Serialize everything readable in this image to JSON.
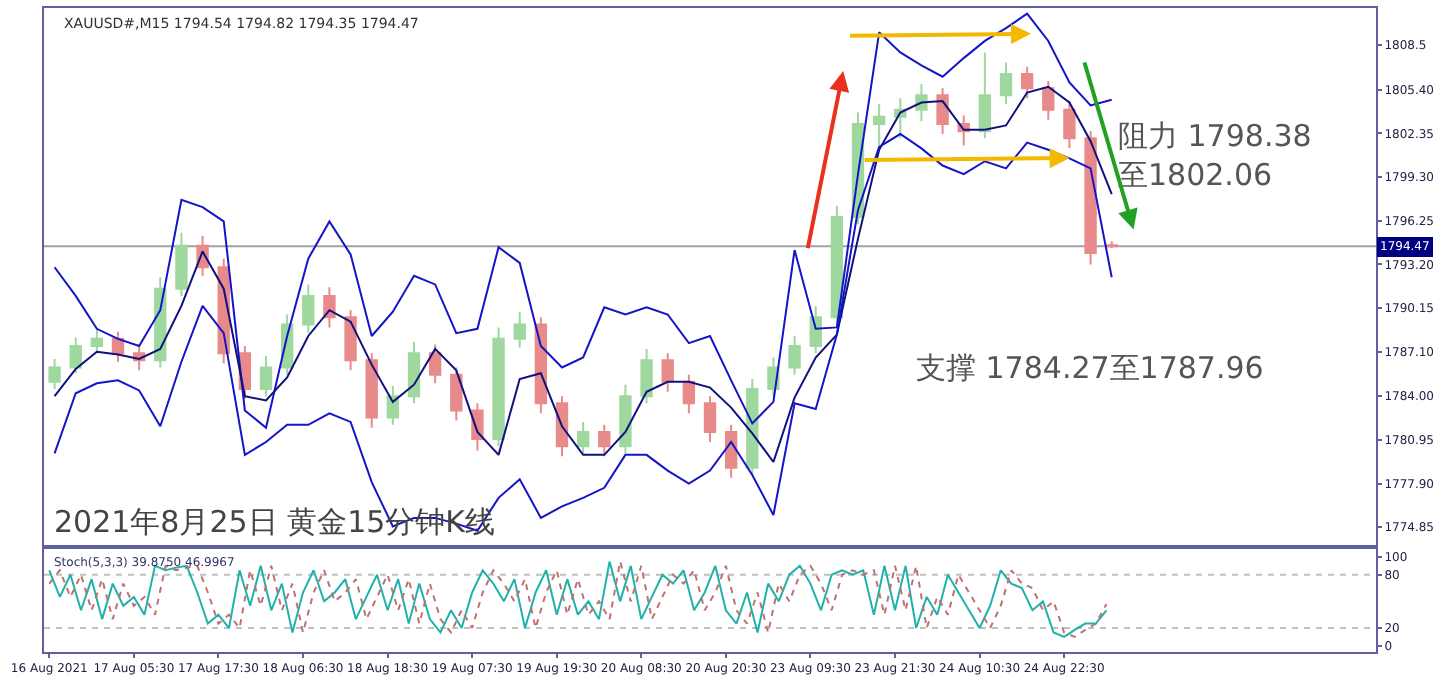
{
  "chart_data": [
    {
      "type": "candlestick",
      "title": "2021年8月25日 黄金15分钟K线",
      "annotations": [
        "XAUUSD#,M15 1794.54 1794.82 1794.35 1794.47",
        "支撑 1784.27至1787.96",
        "阻力 1798.38\n至1802.06"
      ],
      "categories": [
        null,
        null,
        null,
        null,
        null,
        null,
        null,
        null,
        null,
        null,
        null,
        null,
        null,
        null,
        null,
        null,
        null,
        null,
        null,
        null,
        null,
        null,
        null,
        null,
        null,
        null,
        null,
        null,
        null,
        null,
        null,
        null,
        null,
        null,
        null,
        null,
        null,
        null,
        null,
        null,
        null,
        null,
        null,
        null,
        null,
        null,
        null,
        null,
        null,
        null,
        null,
        null,
        null,
        null,
        null,
        null,
        null,
        null,
        null,
        null,
        null,
        null,
        null
      ],
      "ohlc": [
        [
          1785.0,
          1786.6,
          1784.5,
          1786.0
        ],
        [
          1786.0,
          1788.1,
          1785.6,
          1787.5
        ],
        [
          1787.5,
          1788.7,
          1787.0,
          1788.0
        ],
        [
          1788.0,
          1788.5,
          1786.4,
          1787.0
        ],
        [
          1787.0,
          1787.6,
          1785.8,
          1786.5
        ],
        [
          1786.5,
          1792.3,
          1786.0,
          1791.5
        ],
        [
          1791.5,
          1795.4,
          1791.0,
          1794.5
        ],
        [
          1794.5,
          1795.2,
          1792.4,
          1793.0
        ],
        [
          1793.0,
          1793.6,
          1786.3,
          1787.0
        ],
        [
          1787.0,
          1787.5,
          1783.8,
          1784.5
        ],
        [
          1784.5,
          1786.8,
          1784.0,
          1786.0
        ],
        [
          1786.0,
          1789.7,
          1785.5,
          1789.0
        ],
        [
          1789.0,
          1791.8,
          1788.4,
          1791.0
        ],
        [
          1791.0,
          1791.6,
          1788.8,
          1789.5
        ],
        [
          1789.5,
          1790.0,
          1785.8,
          1786.5
        ],
        [
          1786.5,
          1787.0,
          1781.8,
          1782.5
        ],
        [
          1782.5,
          1784.7,
          1782.0,
          1784.0
        ],
        [
          1784.0,
          1787.8,
          1783.5,
          1787.0
        ],
        [
          1787.0,
          1787.6,
          1784.9,
          1785.5
        ],
        [
          1785.5,
          1786.0,
          1782.3,
          1783.0
        ],
        [
          1783.0,
          1783.5,
          1780.2,
          1781.0
        ],
        [
          1781.0,
          1788.8,
          1780.5,
          1788.0
        ],
        [
          1788.0,
          1789.9,
          1787.4,
          1789.0
        ],
        [
          1789.0,
          1789.5,
          1782.8,
          1783.5
        ],
        [
          1783.5,
          1784.0,
          1779.8,
          1780.5
        ],
        [
          1780.5,
          1782.2,
          1780.0,
          1781.5
        ],
        [
          1781.5,
          1782.0,
          1779.8,
          1780.5
        ],
        [
          1780.5,
          1784.8,
          1780.0,
          1784.0
        ],
        [
          1784.0,
          1787.3,
          1783.5,
          1786.5
        ],
        [
          1786.5,
          1787.0,
          1784.3,
          1785.0
        ],
        [
          1785.0,
          1785.5,
          1782.8,
          1783.5
        ],
        [
          1783.5,
          1784.0,
          1780.8,
          1781.5
        ],
        [
          1781.5,
          1782.0,
          1778.3,
          1779.0
        ],
        [
          1779.0,
          1785.2,
          1778.5,
          1784.5
        ],
        [
          1784.5,
          1786.7,
          1784.0,
          1786.0
        ],
        [
          1786.0,
          1788.2,
          1785.5,
          1787.5
        ],
        [
          1787.5,
          1790.3,
          1787.0,
          1789.5
        ],
        [
          1789.5,
          1797.3,
          1789.0,
          1796.5
        ],
        [
          1796.5,
          1803.8,
          1796.0,
          1803.0
        ],
        [
          1803.0,
          1804.4,
          1801.5,
          1803.5
        ],
        [
          1803.5,
          1804.8,
          1802.0,
          1804.0
        ],
        [
          1804.0,
          1805.8,
          1803.2,
          1805.0
        ],
        [
          1805.0,
          1805.5,
          1802.3,
          1803.0
        ],
        [
          1803.0,
          1803.6,
          1801.5,
          1802.5
        ],
        [
          1802.5,
          1808.0,
          1802.0,
          1805.0
        ],
        [
          1805.0,
          1807.3,
          1804.4,
          1806.5
        ],
        [
          1806.5,
          1807.0,
          1804.8,
          1805.5
        ],
        [
          1805.5,
          1806.0,
          1803.3,
          1804.0
        ],
        [
          1804.0,
          1804.6,
          1801.3,
          1802.0
        ],
        [
          1802.0,
          1802.5,
          1793.2,
          1794.0
        ],
        [
          1794.54,
          1794.82,
          1794.35,
          1794.47
        ],
        null,
        null,
        null,
        null,
        null,
        null,
        null,
        null,
        null,
        null,
        null,
        null
      ],
      "colors": [
        "#9fd89f",
        "#9fd89f",
        "#9fd89f",
        "#e88a8a",
        "#e88a8a",
        "#9fd89f",
        "#9fd89f",
        "#e88a8a",
        "#e88a8a",
        "#e88a8a",
        "#9fd89f",
        "#9fd89f",
        "#9fd89f",
        "#e88a8a",
        "#e88a8a",
        "#e88a8a",
        "#9fd89f",
        "#9fd89f",
        "#e88a8a",
        "#e88a8a",
        "#e88a8a",
        "#9fd89f",
        "#9fd89f",
        "#e88a8a",
        "#e88a8a",
        "#9fd89f",
        "#e88a8a",
        "#9fd89f",
        "#9fd89f",
        "#e88a8a",
        "#e88a8a",
        "#e88a8a",
        "#e88a8a",
        "#9fd89f",
        "#9fd89f",
        "#9fd89f",
        "#9fd89f",
        "#9fd89f",
        "#9fd89f",
        "#9fd89f",
        "#9fd89f",
        "#9fd89f",
        "#e88a8a",
        "#e88a8a",
        "#9fd89f",
        "#9fd89f",
        "#e88a8a",
        "#e88a8a",
        "#e88a8a",
        "#e88a8a",
        "#e88a8a",
        null,
        null,
        null,
        null,
        null,
        null,
        null,
        null,
        null,
        null,
        null,
        null
      ],
      "series": [
        {
          "type": "line",
          "color": "#1414c8",
          "values": [
            1793.0,
            1791.0,
            1788.7,
            1788.0,
            1787.5,
            1790.0,
            1797.7,
            1797.2,
            1796.2,
            1783.0,
            1781.8,
            1788.2,
            1793.6,
            1796.2,
            1793.9,
            1788.2,
            1789.9,
            1792.4,
            1791.8,
            1788.4,
            1788.7,
            1794.4,
            1793.3,
            1787.5,
            1786.0,
            1786.7,
            1790.2,
            1789.7,
            1790.2,
            1789.7,
            1787.7,
            1788.2,
            1785.1,
            1782.1,
            1783.6,
            1794.2,
            1788.7,
            1788.8,
            1799.5,
            1809.4,
            1808.0,
            1807.1,
            1806.3,
            1807.6,
            1808.8,
            1809.7,
            1810.7,
            1808.8,
            1805.9,
            1804.3,
            1804.7,
            null,
            null,
            null,
            null,
            null,
            null,
            null,
            null,
            null,
            null,
            null,
            null
          ]
        },
        {
          "type": "line",
          "color": "#101080",
          "values": [
            1784.0,
            1785.9,
            1787.1,
            1786.9,
            1786.6,
            1787.3,
            1790.3,
            1794.1,
            1791.5,
            1784.0,
            1783.7,
            1785.3,
            1788.2,
            1790.0,
            1789.2,
            1786.2,
            1783.6,
            1784.8,
            1787.3,
            1785.8,
            1781.5,
            1779.9,
            1785.2,
            1785.6,
            1781.9,
            1779.9,
            1779.9,
            1781.5,
            1784.3,
            1785.0,
            1785.0,
            1784.6,
            1783.2,
            1781.4,
            1779.4,
            1783.9,
            1786.7,
            1788.3,
            1795.0,
            1801.2,
            1803.8,
            1804.5,
            1804.6,
            1802.6,
            1802.6,
            1802.9,
            1805.2,
            1805.6,
            1804.5,
            1801.8,
            1798.1,
            null,
            null,
            null,
            null,
            null,
            null,
            null,
            null,
            null,
            null,
            null,
            null
          ]
        },
        {
          "type": "line",
          "color": "#1414c8",
          "values": [
            1780.0,
            1784.2,
            1784.9,
            1785.1,
            1784.4,
            1781.9,
            1786.4,
            1790.3,
            1788.4,
            1779.9,
            1780.8,
            1782.0,
            1782.0,
            1782.8,
            1782.2,
            1778.0,
            1774.9,
            1775.5,
            1775.5,
            1775.1,
            1774.6,
            1776.9,
            1778.2,
            1775.5,
            1776.3,
            1776.9,
            1777.6,
            1779.9,
            1779.9,
            1778.8,
            1777.9,
            1778.8,
            1780.8,
            1778.5,
            1775.7,
            1783.5,
            1783.1,
            1788.3,
            1797.0,
            1801.4,
            1802.3,
            1801.3,
            1800.1,
            1799.5,
            1800.4,
            1799.9,
            1801.7,
            1801.2,
            1800.6,
            1799.9,
            1792.3,
            null,
            null,
            null,
            null,
            null,
            null,
            null,
            null,
            null,
            null,
            null,
            null
          ]
        }
      ],
      "ref_lines": [
        {
          "axis": "y",
          "value": 1794.47,
          "label": "1794.47",
          "color": "#a0a0a0"
        }
      ],
      "ylim": [
        1773.6,
        1811.1
      ],
      "yticks": [
        1808.5,
        {
          "value": 1805.4,
          "label": "1805.40"
        },
        {
          "value": 1802.35,
          "label": "1802.35"
        },
        {
          "value": 1799.3,
          "label": "1799.30"
        },
        {
          "value": 1796.25,
          "label": "1796.25"
        },
        {
          "value": 1793.2,
          "label": "1793.20"
        },
        {
          "value": 1790.15,
          "label": "1790.15"
        },
        {
          "value": 1787.1,
          "label": "1787.10"
        },
        {
          "value": 1784.0,
          "label": "1784.00"
        },
        {
          "value": 1780.95,
          "label": "1780.95"
        },
        {
          "value": 1777.9,
          "label": "1777.90"
        },
        {
          "value": 1774.85,
          "label": "1774.85"
        }
      ],
      "tick_labels": "y"
    },
    {
      "type": "line",
      "annotations": [
        "Stoch(5,3,3) 39.8750 46.9967"
      ],
      "categories": [
        "16 Aug 2021",
        null,
        null,
        null,
        null,
        null,
        null,
        null,
        "17 Aug 05:30",
        null,
        null,
        null,
        null,
        null,
        null,
        null,
        "17 Aug 17:30",
        null,
        null,
        null,
        null,
        null,
        null,
        null,
        "18 Aug 06:30",
        null,
        null,
        null,
        null,
        null,
        null,
        null,
        "18 Aug 18:30",
        null,
        null,
        null,
        null,
        null,
        null,
        null,
        "19 Aug 07:30",
        null,
        null,
        null,
        null,
        null,
        null,
        null,
        "19 Aug 19:30",
        null,
        null,
        null,
        null,
        null,
        null,
        null,
        "20 Aug 08:30",
        null,
        null,
        null,
        null,
        null,
        null,
        null,
        "20 Aug 20:30",
        null,
        null,
        null,
        null,
        null,
        null,
        null,
        "23 Aug 09:30",
        null,
        null,
        null,
        null,
        null,
        null,
        null,
        "23 Aug 21:30",
        null,
        null,
        null,
        null,
        null,
        null,
        null,
        "24 Aug 10:30",
        null,
        null,
        null,
        null,
        null,
        null,
        null,
        "24 Aug 22:30",
        null,
        null,
        null,
        null,
        null,
        null,
        null,
        null,
        null,
        null,
        null,
        null,
        null,
        null,
        null,
        null,
        null,
        null,
        null,
        null,
        null,
        null,
        null,
        null,
        null,
        null,
        null,
        null,
        null
      ],
      "series": [
        {
          "color": "#20b2aa",
          "line_style": "solid",
          "values": [
            85,
            55,
            80,
            40,
            75,
            30,
            70,
            45,
            55,
            35,
            90,
            85,
            88,
            90,
            60,
            25,
            35,
            20,
            85,
            45,
            90,
            40,
            70,
            15,
            60,
            85,
            50,
            60,
            75,
            30,
            55,
            80,
            40,
            75,
            25,
            70,
            30,
            15,
            40,
            20,
            60,
            85,
            70,
            50,
            75,
            20,
            60,
            85,
            35,
            75,
            35,
            50,
            30,
            95,
            50,
            90,
            30,
            55,
            80,
            70,
            85,
            40,
            60,
            90,
            40,
            25,
            60,
            15,
            70,
            50,
            80,
            90,
            70,
            40,
            80,
            85,
            80,
            85,
            35,
            90,
            40,
            90,
            20,
            55,
            35,
            80,
            60,
            40,
            20,
            45,
            85,
            70,
            65,
            40,
            50,
            15,
            10,
            18,
            25,
            25,
            40,
            null,
            null,
            null,
            null,
            null,
            null,
            null,
            null,
            null,
            null,
            null,
            null,
            null,
            null,
            null,
            null,
            null,
            null,
            null,
            null,
            null,
            null,
            null,
            null,
            null
          ]
        },
        {
          "color": "#c07070",
          "line_style": "dotted",
          "values": [
            70,
            85,
            55,
            80,
            40,
            75,
            30,
            70,
            45,
            55,
            35,
            90,
            85,
            88,
            90,
            60,
            25,
            35,
            20,
            85,
            45,
            90,
            40,
            70,
            15,
            60,
            85,
            50,
            60,
            75,
            30,
            55,
            80,
            40,
            75,
            25,
            70,
            30,
            15,
            40,
            20,
            60,
            85,
            70,
            50,
            75,
            20,
            60,
            85,
            35,
            75,
            35,
            50,
            30,
            95,
            50,
            90,
            30,
            55,
            80,
            70,
            85,
            40,
            60,
            90,
            40,
            25,
            60,
            15,
            70,
            50,
            80,
            90,
            70,
            40,
            80,
            85,
            80,
            85,
            35,
            90,
            40,
            90,
            20,
            55,
            35,
            80,
            60,
            40,
            20,
            45,
            85,
            70,
            65,
            40,
            50,
            15,
            10,
            18,
            25,
            47,
            null,
            null,
            null,
            null,
            null,
            null,
            null,
            null,
            null,
            null,
            null,
            null,
            null,
            null,
            null,
            null,
            null,
            null,
            null,
            null,
            null,
            null,
            null,
            null,
            null
          ]
        }
      ],
      "ref_lines": [
        {
          "axis": "y",
          "value": 20,
          "color": "#c0c0c0",
          "line_style": "dotted"
        },
        {
          "axis": "y",
          "value": 80,
          "color": "#c0c0c0",
          "line_style": "dotted"
        }
      ],
      "ylim": [
        -7,
        109
      ],
      "yticks": [
        0,
        20,
        80,
        100
      ]
    }
  ]
}
